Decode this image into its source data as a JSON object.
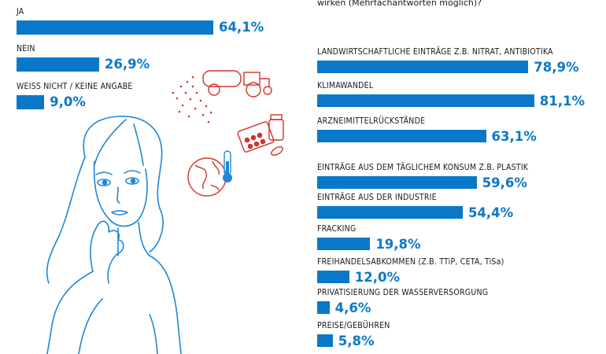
{
  "chart_data": [
    {
      "type": "bar",
      "orientation": "horizontal",
      "title": "",
      "categories": [
        "JA",
        "NEIN",
        "WEISS NICHT / KEINE ANGABE"
      ],
      "values": [
        64.1,
        26.9,
        9.0
      ],
      "value_labels": [
        "64,1%",
        "26,9%",
        "9,0%"
      ],
      "xlim": [
        0,
        100
      ],
      "color": "#0a78c8"
    },
    {
      "type": "bar",
      "orientation": "horizontal",
      "title": "wirken (Mehrfachantworten möglich)?",
      "categories": [
        "LANDWIRTSCHAFTLICHE EINTRÄGE Z.B. NITRAT, ANTIBIOTIKA",
        "KLIMAWANDEL",
        "ARZNEIMITTELRÜCKSTÄNDE",
        "EINTRÄGE AUS DEM TÄGLICHEM KONSUM Z.B. PLASTIK",
        "EINTRÄGE AUS DER INDUSTRIE",
        "FRACKING",
        "FREIHANDELSABKOMMEN (Z.B. TTiP, CETA, TiSa)",
        "PRIVATISIERUNG DER WASSERVERSORGUNG",
        "PREISE/GEBÜHREN"
      ],
      "values": [
        78.9,
        81.1,
        63.1,
        59.6,
        54.4,
        19.8,
        12.0,
        4.6,
        5.8
      ],
      "value_labels": [
        "78,9%",
        "81,1%",
        "63,1%",
        "59,6%",
        "54,4%",
        "19,8%",
        "12,0%",
        "4,6%",
        "5,8%"
      ],
      "xlim": [
        0,
        100
      ],
      "color": "#0a78c8"
    }
  ],
  "icons": {
    "woman": "woman-thinking-icon",
    "tractor": "tractor-spraying-icon",
    "pills": "medicine-pills-icon",
    "globe": "globe-thermometer-icon"
  },
  "colors": {
    "bar": "#0a78c8",
    "illustration_blue": "#1e88d6",
    "illustration_red": "#d0342c"
  }
}
